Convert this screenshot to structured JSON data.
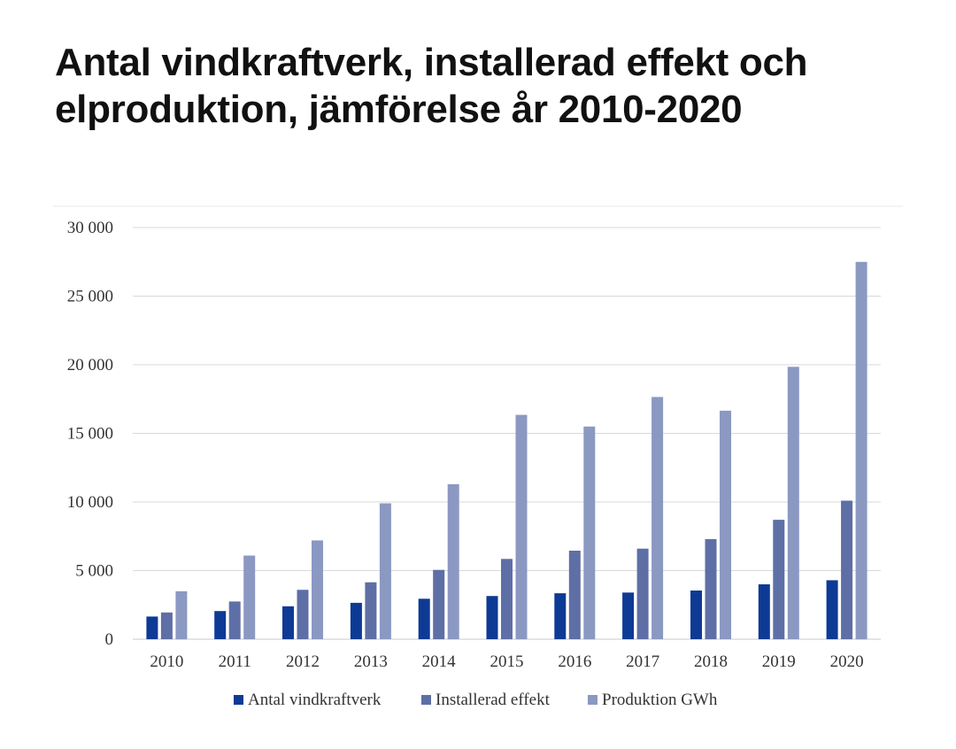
{
  "chart_data": {
    "type": "bar",
    "title": "Antal vindkraftverk, installerad effekt och elproduktion, jämförelse år 2010-2020",
    "xlabel": "",
    "ylabel": "",
    "ylim": [
      0,
      30000
    ],
    "yticks": [
      {
        "value": 0,
        "label": "0"
      },
      {
        "value": 5000,
        "label": "5 000"
      },
      {
        "value": 10000,
        "label": "10 000"
      },
      {
        "value": 15000,
        "label": "15 000"
      },
      {
        "value": 20000,
        "label": "20 000"
      },
      {
        "value": 25000,
        "label": "25 000"
      },
      {
        "value": 30000,
        "label": "30 000"
      }
    ],
    "grid": true,
    "legend_position": "bottom",
    "categories": [
      "2010",
      "2011",
      "2012",
      "2013",
      "2014",
      "2015",
      "2016",
      "2017",
      "2018",
      "2019",
      "2020"
    ],
    "series": [
      {
        "name": "Antal vindkraftverk",
        "color": "#0d3a94",
        "values": [
          1650,
          2050,
          2400,
          2650,
          2950,
          3150,
          3350,
          3400,
          3550,
          4000,
          4300
        ]
      },
      {
        "name": "Installerad effekt",
        "color": "#5e6fa6",
        "values": [
          1950,
          2750,
          3600,
          4150,
          5050,
          5850,
          6450,
          6600,
          7300,
          8700,
          10100
        ]
      },
      {
        "name": "Produktion GWh",
        "color": "#8b98c2",
        "values": [
          3500,
          6100,
          7200,
          9900,
          11300,
          16350,
          15500,
          17650,
          16650,
          19850,
          27500
        ]
      }
    ]
  }
}
